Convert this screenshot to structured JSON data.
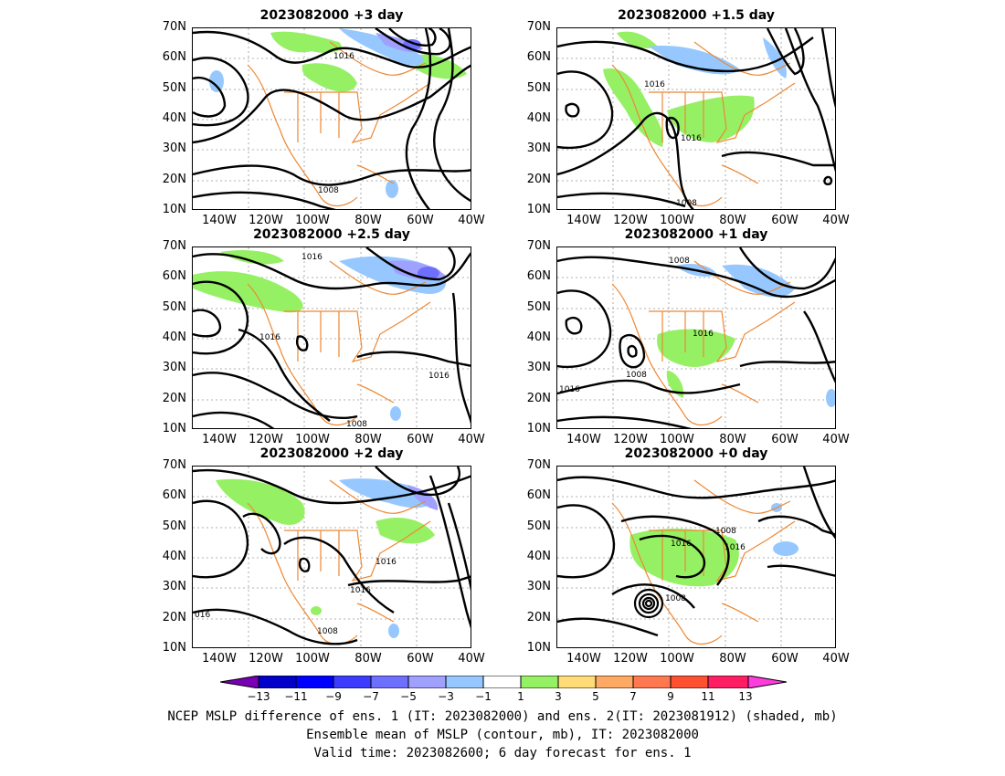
{
  "panels": [
    {
      "title": "2023082000  +3 day"
    },
    {
      "title": "2023082000  +1.5 day"
    },
    {
      "title": "2023082000  +2.5 day"
    },
    {
      "title": "2023082000  +1 day"
    },
    {
      "title": "2023082000  +2 day"
    },
    {
      "title": "2023082000  +0 day"
    }
  ],
  "lat_labels": [
    "70N",
    "60N",
    "50N",
    "40N",
    "30N",
    "20N",
    "10N"
  ],
  "lon_labels": [
    "140W",
    "120W",
    "100W",
    "80W",
    "60W",
    "40W"
  ],
  "contour_labels": {
    "p0": [
      "1016",
      "1008"
    ],
    "p1": [
      "1016",
      "1016",
      "1008"
    ],
    "p2": [
      "1016",
      "1016",
      "1016",
      "1008"
    ],
    "p3": [
      "1008",
      "1016",
      "1008",
      "1016"
    ],
    "p4": [
      "1016",
      "1016",
      "016",
      "1008"
    ],
    "p5": [
      "1008",
      "1016",
      "1016",
      "1008"
    ]
  },
  "colorbar": {
    "ticks": [
      "−13",
      "−11",
      "−9",
      "−7",
      "−5",
      "−3",
      "−1",
      "1",
      "3",
      "5",
      "7",
      "9",
      "11",
      "13"
    ],
    "colors": [
      "#7800b4",
      "#0000c8",
      "#0000ff",
      "#3c3cff",
      "#6e6eff",
      "#a0a0ff",
      "#96c8ff",
      "#ffffff",
      "#96f064",
      "#ffdc78",
      "#ffaa64",
      "#ff7850",
      "#ff5032",
      "#ff1e64",
      "#ff3cdc"
    ]
  },
  "caption": {
    "line1": "NCEP MSLP difference of ens. 1 (IT: 2023082000) and ens. 2(IT: 2023081912) (shaded, mb)",
    "line2": "Ensemble mean of MSLP (contour, mb), IT: 2023082000",
    "line3": "Valid time: 2023082600; 6 day forecast for ens. 1"
  }
}
